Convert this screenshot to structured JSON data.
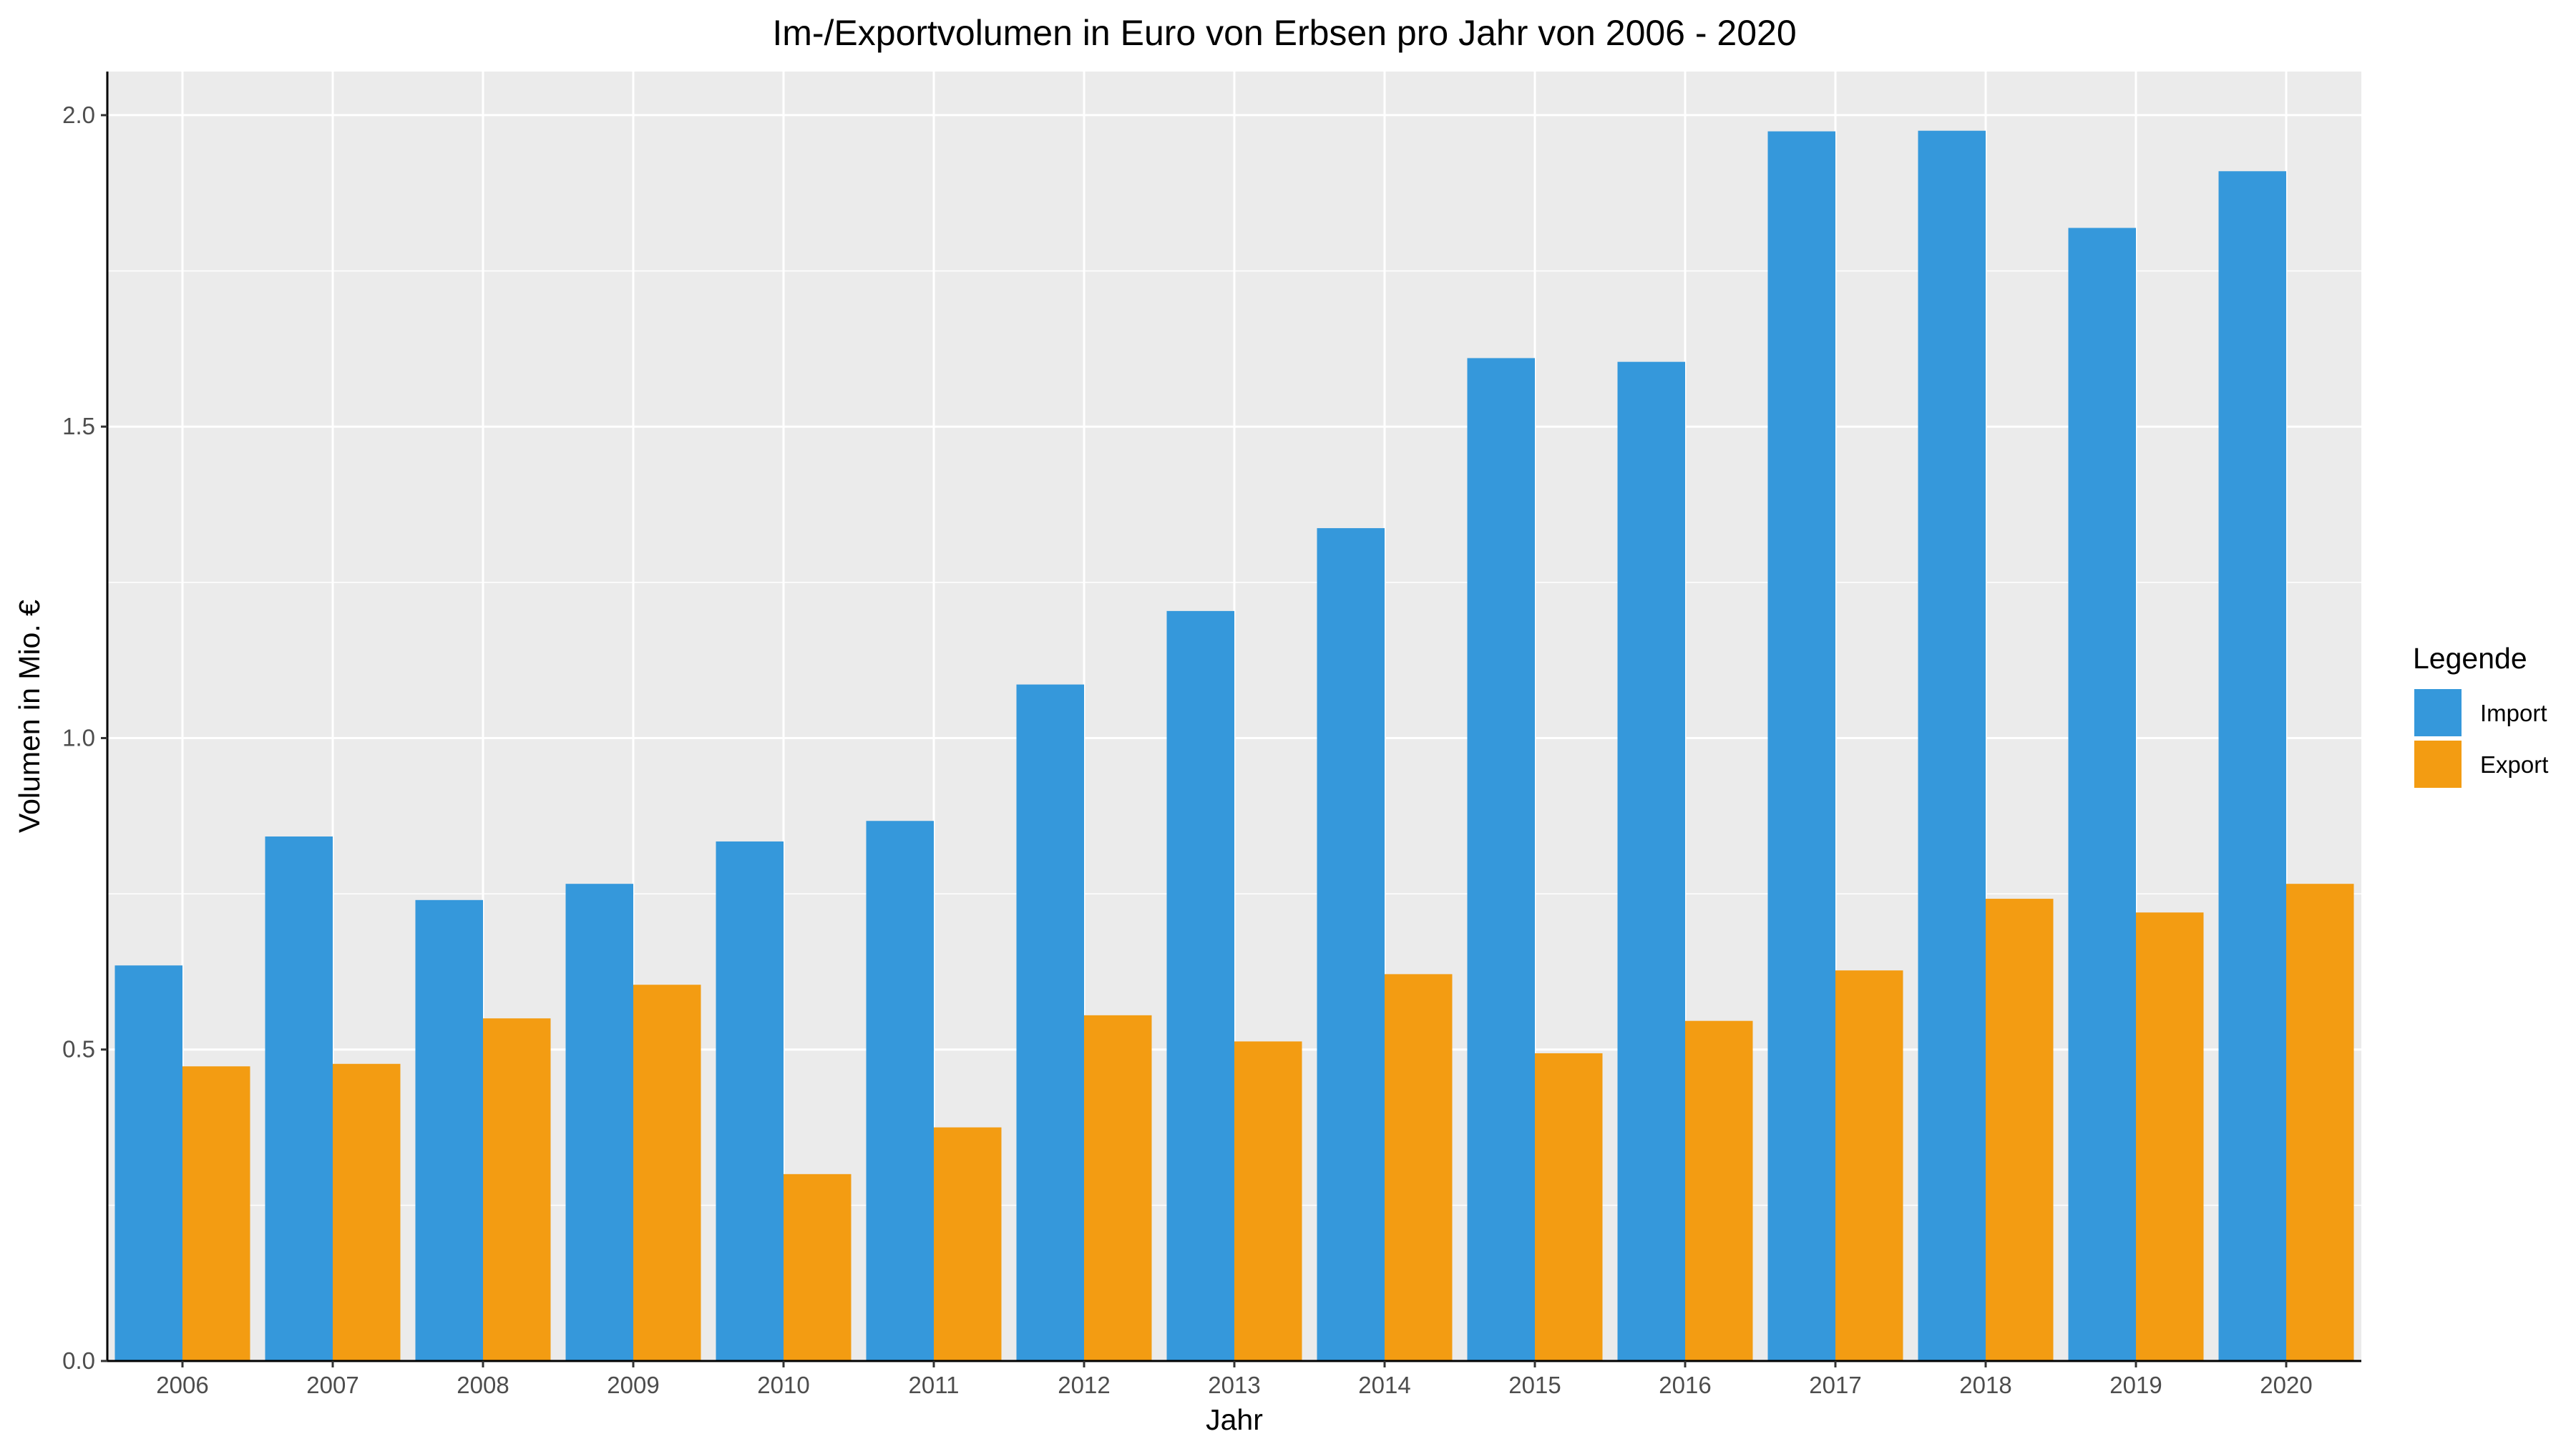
{
  "chart_data": {
    "type": "bar",
    "title": "Im-/Exportvolumen in Euro von Erbsen pro Jahr von 2006 - 2020",
    "xlabel": "Jahr",
    "ylabel": "Volumen in Mio. €",
    "ylim": [
      0,
      2.07
    ],
    "yticks": [
      "0.0",
      "0.5",
      "1.0",
      "1.5",
      "2.0"
    ],
    "categories": [
      "2006",
      "2007",
      "2008",
      "2009",
      "2010",
      "2011",
      "2012",
      "2013",
      "2014",
      "2015",
      "2016",
      "2017",
      "2018",
      "2019",
      "2020"
    ],
    "series": [
      {
        "name": "Import",
        "color": "#3598DB",
        "values": [
          0.635,
          0.842,
          0.74,
          0.766,
          0.834,
          0.867,
          1.086,
          1.204,
          1.337,
          1.61,
          1.604,
          1.974,
          1.975,
          1.819,
          1.91
        ]
      },
      {
        "name": "Export",
        "color": "#F39C12",
        "values": [
          0.473,
          0.477,
          0.55,
          0.604,
          0.3,
          0.375,
          0.555,
          0.513,
          0.621,
          0.494,
          0.546,
          0.627,
          0.742,
          0.72,
          0.766
        ]
      }
    ],
    "grid": true,
    "panel_background": "#EBEBEB",
    "legend": {
      "title": "Legende",
      "position": "right"
    }
  }
}
